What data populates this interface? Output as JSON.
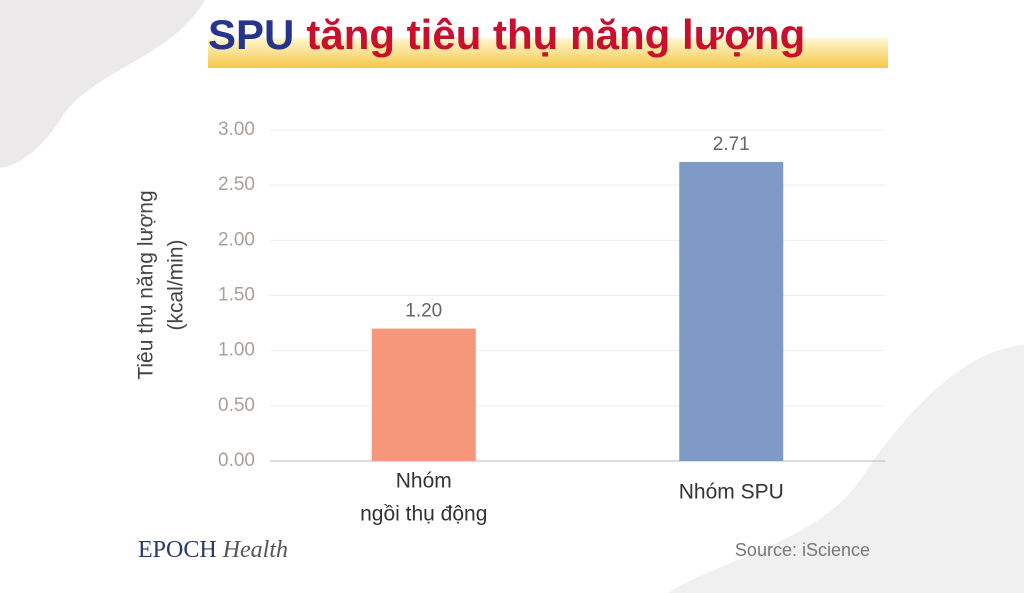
{
  "chart_data": {
    "type": "bar",
    "title_parts": [
      "SPU",
      "tăng tiêu thụ năng lượng"
    ],
    "ylabel": [
      "Tiêu thụ năng lượng",
      "(kcal/min)"
    ],
    "categories": [
      [
        "Nhóm",
        "ngồi thụ động"
      ],
      [
        "Nhóm SPU"
      ]
    ],
    "values": [
      1.2,
      2.71
    ],
    "value_labels": [
      "1.20",
      "2.71"
    ],
    "colors": [
      "#f4977a",
      "#7f9ac6"
    ],
    "ylim": [
      0,
      3
    ],
    "yticks": [
      {
        "value": 0,
        "label": "0.00"
      },
      {
        "value": 0.5,
        "label": "0.50"
      },
      {
        "value": 1,
        "label": "1.00"
      },
      {
        "value": 1.5,
        "label": "1.50"
      },
      {
        "value": 2,
        "label": "2.00"
      },
      {
        "value": 2.5,
        "label": "2.50"
      },
      {
        "value": 3,
        "label": "3.00"
      }
    ],
    "grid": true
  },
  "footer": {
    "brand": [
      "EPOCH",
      "Health"
    ],
    "source": "Source: iScience"
  }
}
